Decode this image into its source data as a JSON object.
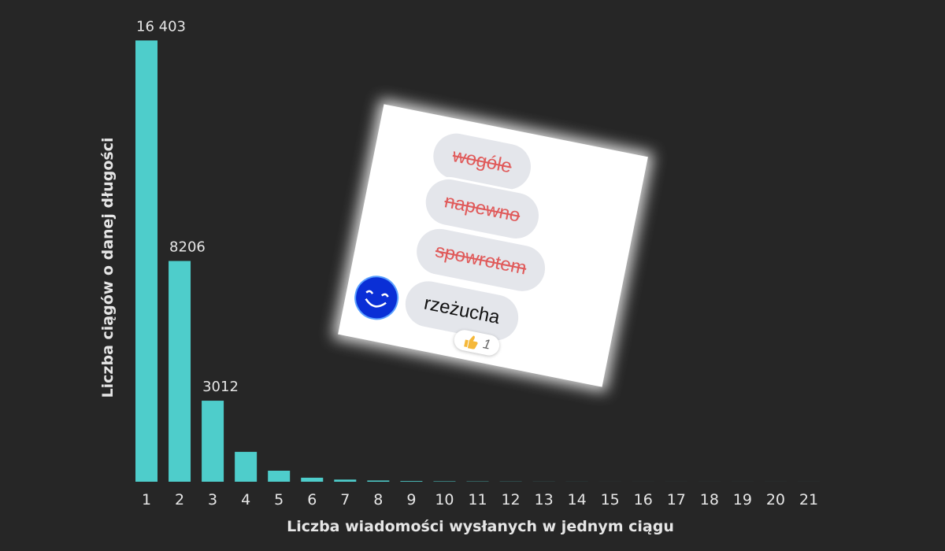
{
  "chart_data": {
    "type": "bar",
    "categories": [
      "1",
      "2",
      "3",
      "4",
      "5",
      "6",
      "7",
      "8",
      "9",
      "10",
      "11",
      "12",
      "13",
      "14",
      "15",
      "16",
      "17",
      "18",
      "19",
      "20",
      "21"
    ],
    "values": [
      16403,
      8206,
      3012,
      1110,
      410,
      150,
      80,
      45,
      25,
      15,
      10,
      6,
      3,
      2,
      1,
      1,
      1,
      1,
      1,
      1,
      1
    ],
    "value_labels": [
      "16 403",
      "8206",
      "3012",
      null,
      null,
      null,
      null,
      null,
      null,
      null,
      null,
      null,
      null,
      null,
      null,
      null,
      null,
      null,
      null,
      null,
      null
    ],
    "color": "#4ecdcb",
    "ylim": [
      0,
      17000
    ],
    "xlabel": "Liczba wiadomości wysłanych w jednym ciągu",
    "ylabel": "Liczba ciągów o danej długości",
    "grid": false
  },
  "overlay": {
    "messages": [
      {
        "text": "wogóle",
        "struck": true
      },
      {
        "text": "napewno",
        "struck": true
      },
      {
        "text": "spowrotem",
        "struck": true
      },
      {
        "text": "rzeżucha",
        "struck": false
      }
    ],
    "reaction_count": 1
  }
}
